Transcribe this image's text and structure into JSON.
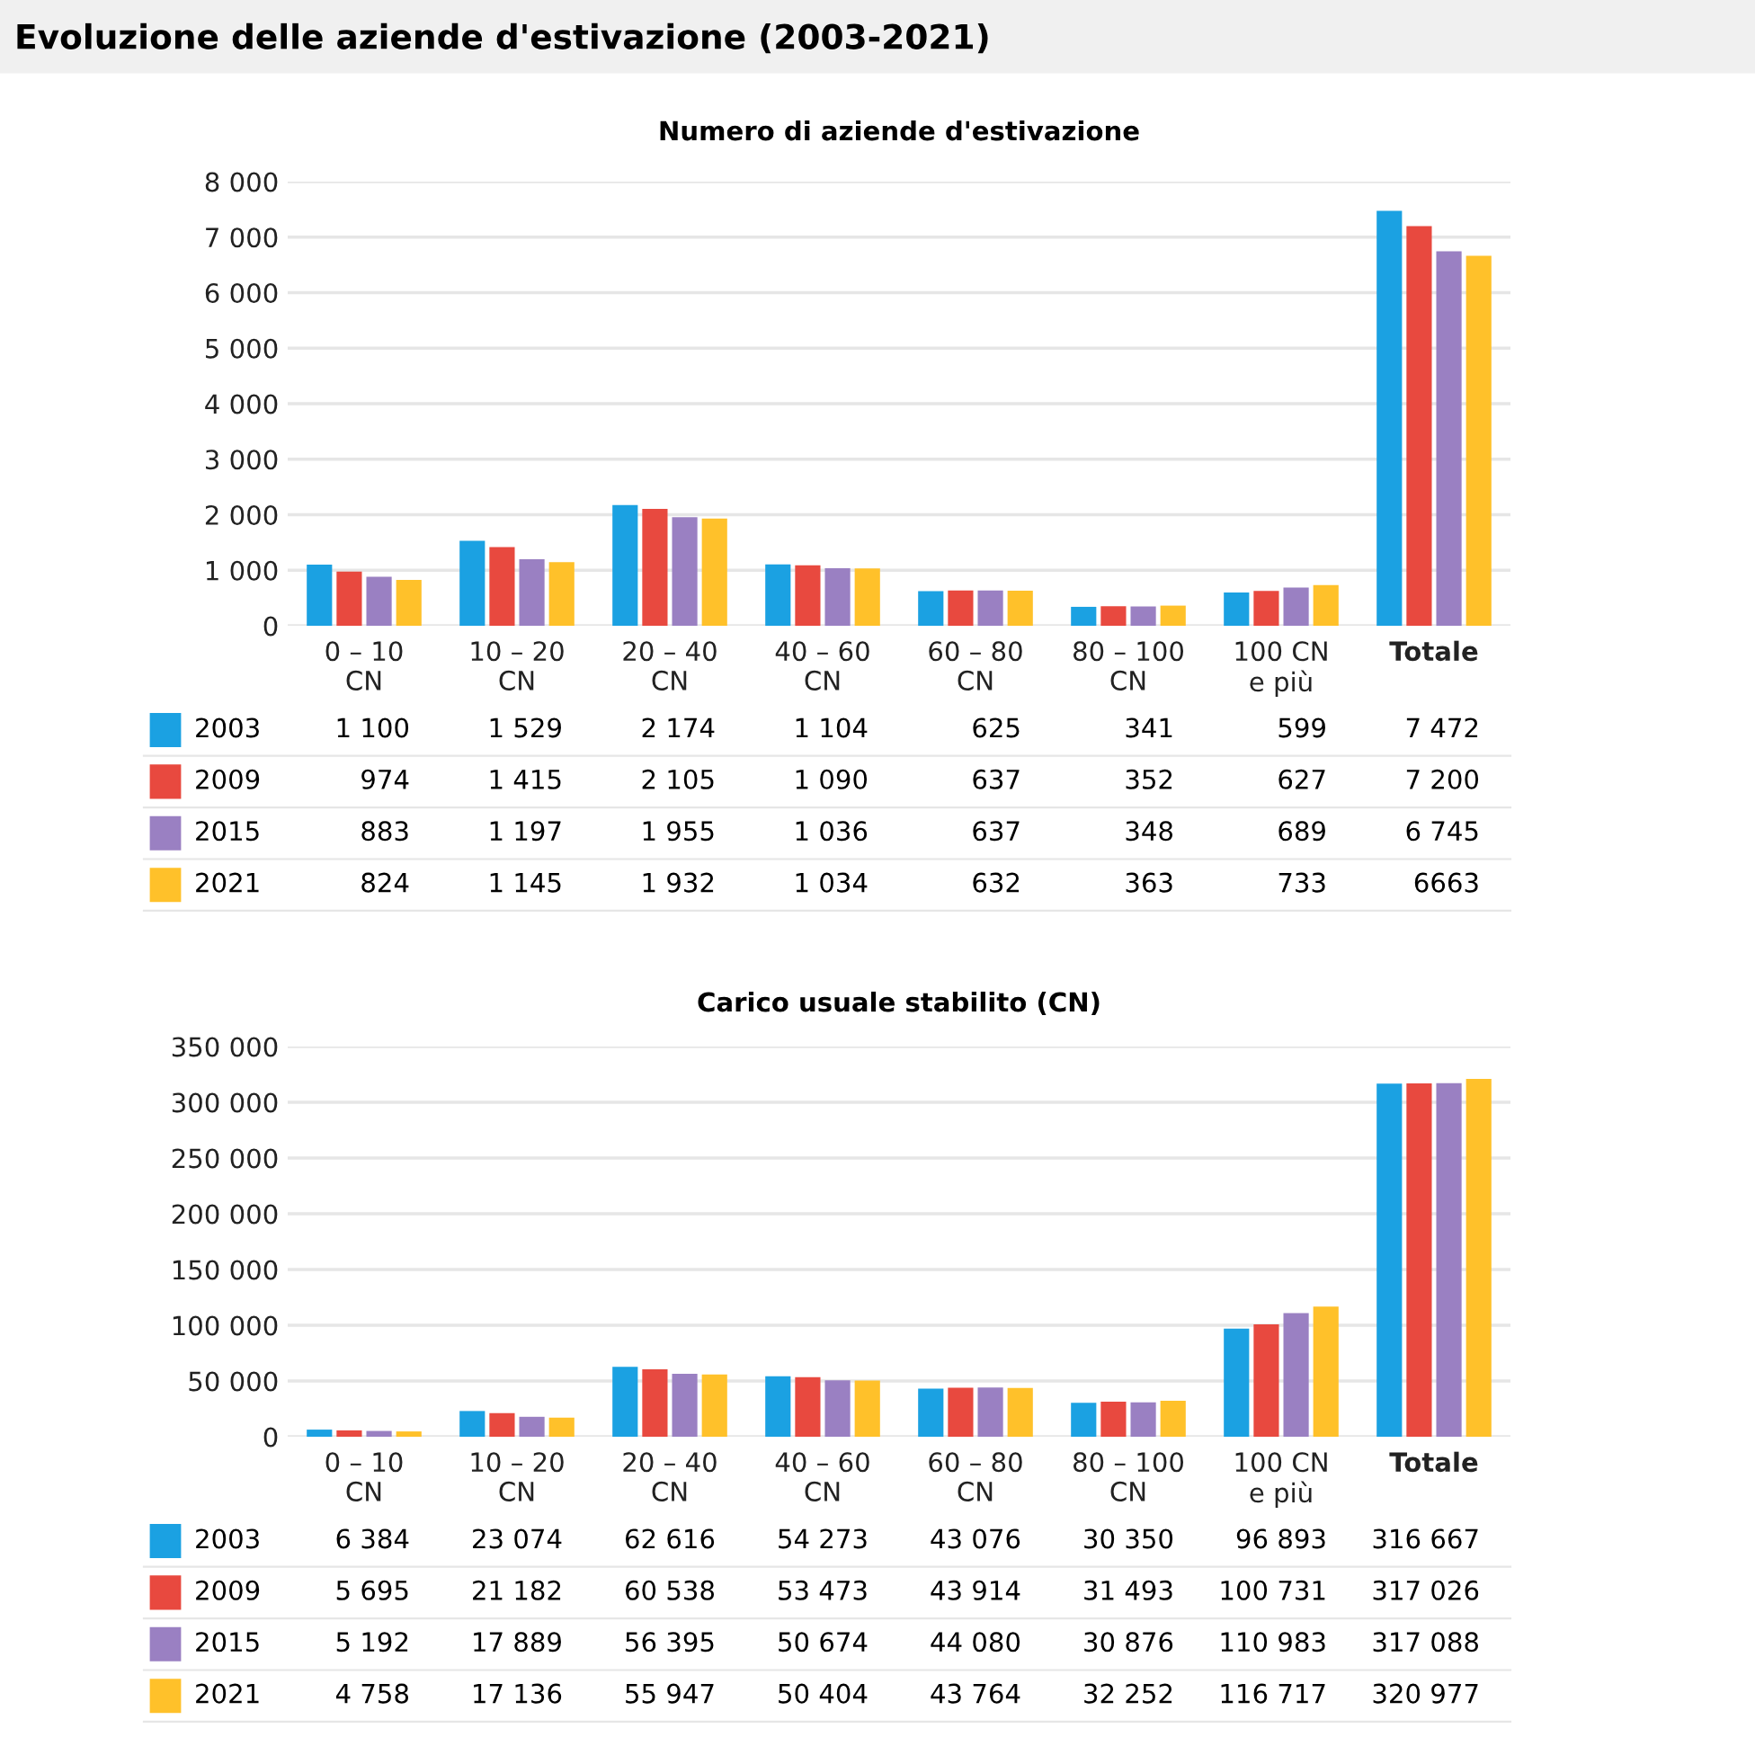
{
  "chart_data": [
    {
      "type": "bar",
      "title": "Evoluzione delle aziende d'estivazione (2003-2021)",
      "subtitle": "Numero di aziende d'estivazione",
      "categories": [
        "0 – 10\nCN",
        "10 – 20\nCN",
        "20 – 40\nCN",
        "40 – 60\nCN",
        "60 – 80\nCN",
        "80 – 100\nCN",
        "100 CN\ne più",
        "Totale"
      ],
      "series": [
        {
          "name": "2003",
          "color": "#1ba1e2",
          "values": [
            1100,
            1529,
            2174,
            1104,
            625,
            341,
            599,
            7472
          ],
          "value_labels": [
            "1 100",
            "1 529",
            "2 174",
            "1 104",
            "625",
            "341",
            "599",
            "7 472"
          ]
        },
        {
          "name": "2009",
          "color": "#e8493f",
          "values": [
            974,
            1415,
            2105,
            1090,
            637,
            352,
            627,
            7200
          ],
          "value_labels": [
            "974",
            "1 415",
            "2 105",
            "1 090",
            "637",
            "352",
            "627",
            "7 200"
          ]
        },
        {
          "name": "2015",
          "color": "#9a80c2",
          "values": [
            883,
            1197,
            1955,
            1036,
            637,
            348,
            689,
            6745
          ],
          "value_labels": [
            "883",
            "1 197",
            "1 955",
            "1 036",
            "637",
            "348",
            "689",
            "6 745"
          ]
        },
        {
          "name": "2021",
          "color": "#ffc12a",
          "values": [
            824,
            1145,
            1932,
            1034,
            632,
            363,
            733,
            6663
          ],
          "value_labels": [
            "824",
            "1 145",
            "1 932",
            "1 034",
            "632",
            "363",
            "733",
            "6663"
          ]
        }
      ],
      "ylim": [
        0,
        8000
      ],
      "yticks": [
        0,
        {
          "value": 1000,
          "label": "1 000"
        },
        {
          "value": 2000,
          "label": "2 000"
        },
        {
          "value": 3000,
          "label": "3 000"
        },
        {
          "value": 4000,
          "label": "4 000"
        },
        {
          "value": 5000,
          "label": "5 000"
        },
        {
          "value": 6000,
          "label": "6 000"
        },
        {
          "value": 7000,
          "label": "7 000"
        },
        {
          "value": 8000,
          "label": "8 000"
        }
      ],
      "grid": "y",
      "legend": "bottom"
    },
    {
      "type": "bar",
      "title": "Carico usuale stabilito (CN)",
      "categories": [
        "0 – 10\nCN",
        "10 – 20\nCN",
        "20 – 40\nCN",
        "40 – 60\nCN",
        "60 – 80\nCN",
        "80 – 100\nCN",
        "100 CN\ne più",
        "Totale"
      ],
      "series": [
        {
          "name": "2003",
          "color": "#1ba1e2",
          "values": [
            6384,
            23074,
            62616,
            54273,
            43076,
            30350,
            96893,
            316667
          ],
          "value_labels": [
            "6 384",
            "23 074",
            "62 616",
            "54 273",
            "43 076",
            "30 350",
            "96 893",
            "316 667"
          ]
        },
        {
          "name": "2009",
          "color": "#e8493f",
          "values": [
            5695,
            21182,
            60538,
            53473,
            43914,
            31493,
            100731,
            317026
          ],
          "value_labels": [
            "5 695",
            "21 182",
            "60 538",
            "53 473",
            "43 914",
            "31 493",
            "100 731",
            "317 026"
          ]
        },
        {
          "name": "2015",
          "color": "#9a80c2",
          "values": [
            5192,
            17889,
            56395,
            50674,
            44080,
            30876,
            110983,
            317088
          ],
          "value_labels": [
            "5 192",
            "17 889",
            "56 395",
            "50 674",
            "44 080",
            "30 876",
            "110 983",
            "317 088"
          ]
        },
        {
          "name": "2021",
          "color": "#ffc12a",
          "values": [
            4758,
            17136,
            55947,
            50404,
            43764,
            32252,
            116717,
            320977
          ],
          "value_labels": [
            "4 758",
            "17 136",
            "55 947",
            "50 404",
            "43 764",
            "32 252",
            "116 717",
            "320 977"
          ]
        }
      ],
      "ylim": [
        0,
        350000
      ],
      "yticks": [
        0,
        {
          "value": 50000,
          "label": "50 000"
        },
        {
          "value": 100000,
          "label": "100 000"
        },
        {
          "value": 150000,
          "label": "150 000"
        },
        {
          "value": 200000,
          "label": "200 000"
        },
        {
          "value": 250000,
          "label": "250 000"
        },
        {
          "value": 300000,
          "label": "300 000"
        },
        {
          "value": 350000,
          "label": "350 000"
        }
      ],
      "grid": "y",
      "legend": "bottom"
    }
  ]
}
